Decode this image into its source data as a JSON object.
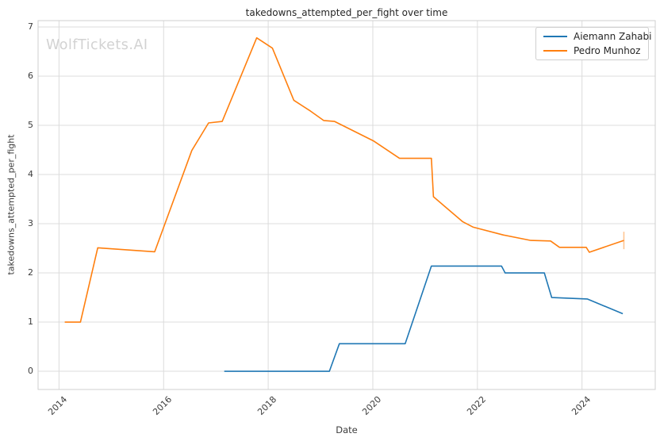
{
  "watermark": "WolfTickets.AI",
  "colors": {
    "background": "#ffffff",
    "grid": "#dcdcdc",
    "spine": "#cfcfcf",
    "title_text": "#262626",
    "tick_text": "#3c3c3c",
    "watermark_text": "#d2d2d2",
    "series_blue": "#1f77b4",
    "series_orange": "#ff7f0e"
  },
  "chart_data": {
    "type": "line",
    "title": "takedowns_attempted_per_fight over time",
    "xlabel": "Date",
    "ylabel": "takedowns_attempted_per_fight",
    "x_ticks": [
      2014,
      2016,
      2018,
      2020,
      2022,
      2024
    ],
    "x_tick_labels": [
      "2014",
      "2016",
      "2018",
      "2020",
      "2022",
      "2024"
    ],
    "y_ticks": [
      0,
      1,
      2,
      3,
      4,
      5,
      6,
      7
    ],
    "xlim": [
      2013.6,
      2025.4
    ],
    "ylim": [
      -0.37,
      7.13
    ],
    "grid": true,
    "legend_position": "upper-right",
    "series": [
      {
        "name": "Aiemann Zahabi",
        "color": "#1f77b4",
        "end_marker": false,
        "points": [
          [
            2017.16,
            0.0
          ],
          [
            2019.17,
            0.0
          ],
          [
            2019.36,
            0.56
          ],
          [
            2020.62,
            0.56
          ],
          [
            2021.12,
            2.14
          ],
          [
            2022.46,
            2.14
          ],
          [
            2022.53,
            2.0
          ],
          [
            2023.28,
            2.0
          ],
          [
            2023.42,
            1.5
          ],
          [
            2024.1,
            1.47
          ],
          [
            2024.78,
            1.17
          ]
        ]
      },
      {
        "name": "Pedro Munhoz",
        "color": "#ff7f0e",
        "end_marker": true,
        "points": [
          [
            2014.11,
            1.0
          ],
          [
            2014.41,
            1.0
          ],
          [
            2014.74,
            2.51
          ],
          [
            2015.83,
            2.43
          ],
          [
            2016.54,
            4.49
          ],
          [
            2016.86,
            5.05
          ],
          [
            2017.12,
            5.08
          ],
          [
            2017.78,
            6.78
          ],
          [
            2018.08,
            6.57
          ],
          [
            2018.49,
            5.51
          ],
          [
            2018.81,
            5.29
          ],
          [
            2019.06,
            5.1
          ],
          [
            2019.27,
            5.08
          ],
          [
            2020.02,
            4.68
          ],
          [
            2020.51,
            4.33
          ],
          [
            2021.12,
            4.33
          ],
          [
            2021.16,
            3.55
          ],
          [
            2021.4,
            3.33
          ],
          [
            2021.72,
            3.04
          ],
          [
            2021.92,
            2.93
          ],
          [
            2022.5,
            2.77
          ],
          [
            2023.02,
            2.66
          ],
          [
            2023.4,
            2.65
          ],
          [
            2023.57,
            2.52
          ],
          [
            2024.08,
            2.52
          ],
          [
            2024.14,
            2.42
          ],
          [
            2024.8,
            2.66
          ]
        ]
      }
    ]
  }
}
